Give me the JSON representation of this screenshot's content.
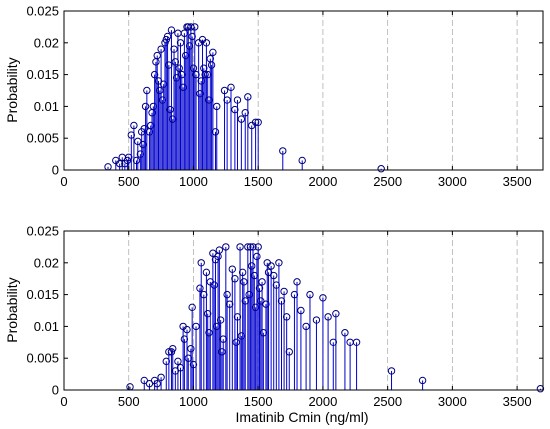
{
  "chart_data": [
    {
      "type": "stem",
      "title": "",
      "xlabel": "",
      "ylabel": "Probability",
      "xlim": [
        0,
        3700
      ],
      "ylim": [
        0,
        0.025
      ],
      "xticks": [
        0,
        500,
        1000,
        1500,
        2000,
        2500,
        3000,
        3500
      ],
      "xtick_labels": [
        "0",
        "500",
        "1000",
        "1500",
        "2000",
        "2500",
        "3000",
        "3500"
      ],
      "yticks": [
        0,
        0.005,
        0.01,
        0.015,
        0.02,
        0.025
      ],
      "ytick_labels": [
        "0",
        "0.005",
        "0.01",
        "0.015",
        "0.02",
        "0.025"
      ],
      "grid": "vertical dashed",
      "legend": "none",
      "marker": "circle",
      "color": "#0000cc",
      "points": [
        [
          340,
          0.0005
        ],
        [
          400,
          0.0015
        ],
        [
          430,
          0.001
        ],
        [
          450,
          0.002
        ],
        [
          470,
          0.001
        ],
        [
          490,
          0.0015
        ],
        [
          500,
          0.002
        ],
        [
          520,
          0.0055
        ],
        [
          540,
          0.007
        ],
        [
          560,
          0.0015
        ],
        [
          570,
          0.0045
        ],
        [
          590,
          0.0025
        ],
        [
          600,
          0.006
        ],
        [
          610,
          0.004
        ],
        [
          620,
          0.0065
        ],
        [
          630,
          0.01
        ],
        [
          640,
          0.0125
        ],
        [
          660,
          0.006
        ],
        [
          670,
          0.007
        ],
        [
          680,
          0.009
        ],
        [
          690,
          0.01
        ],
        [
          700,
          0.015
        ],
        [
          710,
          0.017
        ],
        [
          720,
          0.018
        ],
        [
          730,
          0.014
        ],
        [
          740,
          0.0125
        ],
        [
          750,
          0.019
        ],
        [
          760,
          0.011
        ],
        [
          770,
          0.0135
        ],
        [
          780,
          0.02
        ],
        [
          790,
          0.0205
        ],
        [
          800,
          0.021
        ],
        [
          810,
          0.0165
        ],
        [
          820,
          0.0095
        ],
        [
          830,
          0.022
        ],
        [
          840,
          0.008
        ],
        [
          850,
          0.019
        ],
        [
          860,
          0.017
        ],
        [
          870,
          0.0145
        ],
        [
          880,
          0.0215
        ],
        [
          890,
          0.016
        ],
        [
          900,
          0.02
        ],
        [
          910,
          0.015
        ],
        [
          920,
          0.013
        ],
        [
          930,
          0.0215
        ],
        [
          940,
          0.018
        ],
        [
          950,
          0.0225
        ],
        [
          960,
          0.0225
        ],
        [
          970,
          0.0195
        ],
        [
          980,
          0.0225
        ],
        [
          990,
          0.021
        ],
        [
          1000,
          0.016
        ],
        [
          1010,
          0.0225
        ],
        [
          1020,
          0.015
        ],
        [
          1040,
          0.02
        ],
        [
          1050,
          0.012
        ],
        [
          1060,
          0.014
        ],
        [
          1070,
          0.0205
        ],
        [
          1080,
          0.016
        ],
        [
          1090,
          0.015
        ],
        [
          1100,
          0.02
        ],
        [
          1110,
          0.015
        ],
        [
          1120,
          0.011
        ],
        [
          1130,
          0.0175
        ],
        [
          1140,
          0.0165
        ],
        [
          1150,
          0.0185
        ],
        [
          1170,
          0.006
        ],
        [
          1180,
          0.01
        ],
        [
          1240,
          0.0125
        ],
        [
          1260,
          0.011
        ],
        [
          1290,
          0.013
        ],
        [
          1320,
          0.0095
        ],
        [
          1340,
          0.011
        ],
        [
          1370,
          0.008
        ],
        [
          1400,
          0.009
        ],
        [
          1420,
          0.0115
        ],
        [
          1450,
          0.007
        ],
        [
          1480,
          0.0075
        ],
        [
          1500,
          0.0075
        ],
        [
          1690,
          0.003
        ],
        [
          1840,
          0.0015
        ],
        [
          2450,
          0.0002
        ]
      ]
    },
    {
      "type": "stem",
      "title": "",
      "xlabel": "Imatinib Cmin (ng/ml)",
      "ylabel": "Probability",
      "xlim": [
        0,
        3700
      ],
      "ylim": [
        0,
        0.025
      ],
      "xticks": [
        0,
        500,
        1000,
        1500,
        2000,
        2500,
        3000,
        3500
      ],
      "xtick_labels": [
        "0",
        "500",
        "1000",
        "1500",
        "2000",
        "2500",
        "3000",
        "3500"
      ],
      "yticks": [
        0,
        0.005,
        0.01,
        0.015,
        0.02,
        0.025
      ],
      "ytick_labels": [
        "0",
        "0.005",
        "0.01",
        "0.015",
        "0.02",
        "0.025"
      ],
      "grid": "vertical dashed",
      "legend": "none",
      "marker": "circle",
      "color": "#0000cc",
      "points": [
        [
          510,
          0.0005
        ],
        [
          620,
          0.0015
        ],
        [
          660,
          0.001
        ],
        [
          700,
          0.0015
        ],
        [
          720,
          0.001
        ],
        [
          750,
          0.002
        ],
        [
          790,
          0.0045
        ],
        [
          810,
          0.006
        ],
        [
          830,
          0.006
        ],
        [
          840,
          0.0065
        ],
        [
          860,
          0.003
        ],
        [
          880,
          0.0045
        ],
        [
          900,
          0.0035
        ],
        [
          920,
          0.01
        ],
        [
          930,
          0.008
        ],
        [
          950,
          0.0095
        ],
        [
          960,
          0.005
        ],
        [
          980,
          0.0065
        ],
        [
          990,
          0.013
        ],
        [
          1000,
          0.004
        ],
        [
          1020,
          0.01
        ],
        [
          1050,
          0.016
        ],
        [
          1060,
          0.02
        ],
        [
          1080,
          0.015
        ],
        [
          1100,
          0.0185
        ],
        [
          1110,
          0.012
        ],
        [
          1120,
          0.009
        ],
        [
          1130,
          0.017
        ],
        [
          1150,
          0.0215
        ],
        [
          1160,
          0.0165
        ],
        [
          1170,
          0.0205
        ],
        [
          1180,
          0.01
        ],
        [
          1190,
          0.021
        ],
        [
          1200,
          0.022
        ],
        [
          1210,
          0.011
        ],
        [
          1220,
          0.006
        ],
        [
          1230,
          0.008
        ],
        [
          1250,
          0.0225
        ],
        [
          1260,
          0.015
        ],
        [
          1280,
          0.0135
        ],
        [
          1300,
          0.019
        ],
        [
          1320,
          0.0175
        ],
        [
          1330,
          0.0075
        ],
        [
          1340,
          0.0115
        ],
        [
          1360,
          0.0225
        ],
        [
          1370,
          0.0085
        ],
        [
          1380,
          0.0185
        ],
        [
          1390,
          0.017
        ],
        [
          1400,
          0.014
        ],
        [
          1420,
          0.0225
        ],
        [
          1430,
          0.015
        ],
        [
          1440,
          0.0225
        ],
        [
          1450,
          0.0195
        ],
        [
          1460,
          0.0225
        ],
        [
          1470,
          0.018
        ],
        [
          1480,
          0.013
        ],
        [
          1490,
          0.021
        ],
        [
          1500,
          0.0225
        ],
        [
          1510,
          0.016
        ],
        [
          1520,
          0.014
        ],
        [
          1530,
          0.017
        ],
        [
          1540,
          0.009
        ],
        [
          1560,
          0.0135
        ],
        [
          1570,
          0.02
        ],
        [
          1580,
          0.0185
        ],
        [
          1600,
          0.0195
        ],
        [
          1620,
          0.018
        ],
        [
          1640,
          0.0165
        ],
        [
          1660,
          0.02
        ],
        [
          1680,
          0.014
        ],
        [
          1700,
          0.0155
        ],
        [
          1720,
          0.0115
        ],
        [
          1740,
          0.006
        ],
        [
          1780,
          0.015
        ],
        [
          1800,
          0.017
        ],
        [
          1830,
          0.0125
        ],
        [
          1870,
          0.01
        ],
        [
          1900,
          0.015
        ],
        [
          1950,
          0.011
        ],
        [
          2000,
          0.0145
        ],
        [
          2040,
          0.0115
        ],
        [
          2080,
          0.0075
        ],
        [
          2100,
          0.012
        ],
        [
          2170,
          0.009
        ],
        [
          2210,
          0.0075
        ],
        [
          2260,
          0.0075
        ],
        [
          2530,
          0.003
        ],
        [
          2770,
          0.0015
        ],
        [
          3680,
          0.0002
        ]
      ]
    }
  ]
}
